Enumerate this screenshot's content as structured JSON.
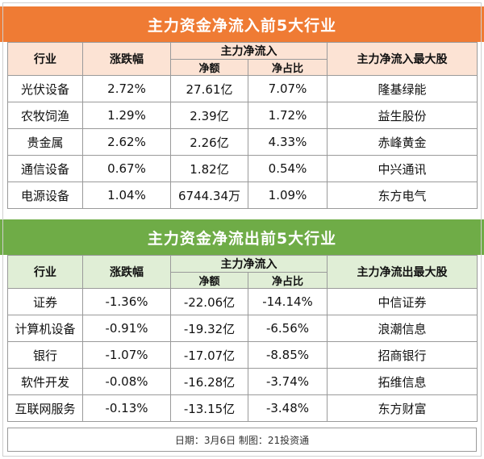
{
  "inflow": {
    "title": "主力资金净流入前5大行业",
    "headers": {
      "industry": "行业",
      "change": "涨跌幅",
      "main_net": "主力净流入",
      "net_amount": "净额",
      "net_ratio": "净占比",
      "top_stock": "主力净流入最大股"
    },
    "rows": [
      {
        "industry": "光伏设备",
        "change": "2.72%",
        "net": "27.61亿",
        "ratio": "7.07%",
        "stock": "隆基绿能"
      },
      {
        "industry": "农牧饲渔",
        "change": "1.29%",
        "net": "2.39亿",
        "ratio": "1.72%",
        "stock": "益生股份"
      },
      {
        "industry": "贵金属",
        "change": "2.62%",
        "net": "2.26亿",
        "ratio": "4.33%",
        "stock": "赤峰黄金"
      },
      {
        "industry": "通信设备",
        "change": "0.67%",
        "net": "1.82亿",
        "ratio": "0.54%",
        "stock": "中兴通讯"
      },
      {
        "industry": "电源设备",
        "change": "1.04%",
        "net": "6744.34万",
        "ratio": "1.09%",
        "stock": "东方电气"
      }
    ]
  },
  "outflow": {
    "title": "主力资金净流出前5大行业",
    "headers": {
      "industry": "行业",
      "change": "涨跌幅",
      "main_net": "主力净流入",
      "net_amount": "净额",
      "net_ratio": "净占比",
      "top_stock": "主力净流出最大股"
    },
    "rows": [
      {
        "industry": "证券",
        "change": "-1.36%",
        "net": "-22.06亿",
        "ratio": "-14.14%",
        "stock": "中信证券"
      },
      {
        "industry": "计算机设备",
        "change": "-0.91%",
        "net": "-19.32亿",
        "ratio": "-6.56%",
        "stock": "浪潮信息"
      },
      {
        "industry": "银行",
        "change": "-1.07%",
        "net": "-17.07亿",
        "ratio": "-8.85%",
        "stock": "招商银行"
      },
      {
        "industry": "软件开发",
        "change": "-0.08%",
        "net": "-16.28亿",
        "ratio": "-3.74%",
        "stock": "拓维信息"
      },
      {
        "industry": "互联网服务",
        "change": "-0.13%",
        "net": "-13.15亿",
        "ratio": "-3.48%",
        "stock": "东方财富"
      }
    ]
  },
  "footer": "日期：3月6日 制图：21投资通",
  "colors": {
    "inflow_banner": "#ef7b34",
    "inflow_header": "#fce3d4",
    "outflow_banner": "#6fac47",
    "outflow_header": "#e0eed6"
  }
}
